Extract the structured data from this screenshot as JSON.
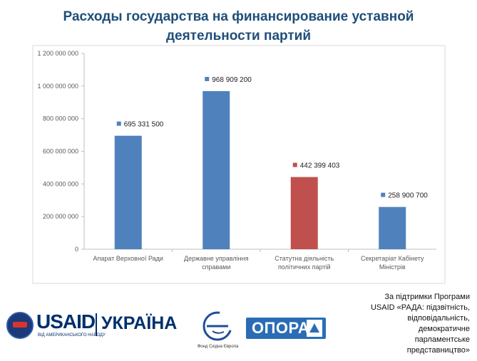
{
  "header": {
    "title_line1": "Расходы государства на финансирование уставной",
    "title_line2": "деятельности партий"
  },
  "chart_data": {
    "type": "bar",
    "title": "Расходы государства на финансирование уставной деятельности партий",
    "categories": [
      [
        "Апарат Верховної Ради"
      ],
      [
        "Державне управління",
        "справами"
      ],
      [
        "Статутна діяльність",
        "політичних партій"
      ],
      [
        "Секретаріат Кабінету",
        "Міністрів"
      ]
    ],
    "values": [
      695331500,
      968909200,
      442399403,
      258900700
    ],
    "data_labels": [
      "695 331 500",
      "968 909 200",
      "442 399 403",
      "258 900 700"
    ],
    "bar_colors": [
      "#4f81bd",
      "#4f81bd",
      "#c0504d",
      "#4f81bd"
    ],
    "ylim": [
      0,
      1200000000
    ],
    "ytick_values": [
      0,
      200000000,
      400000000,
      600000000,
      800000000,
      1000000000,
      1200000000
    ],
    "ytick_labels": [
      "0",
      "200 000 000",
      "400 000 000",
      "600 000 000",
      "800 000 000",
      "1 000 000 000",
      "1 200 000 000"
    ],
    "xlabel": "",
    "ylabel": "",
    "grid": false,
    "legend": "none"
  },
  "footer": {
    "usaid_word": "USAID",
    "usaid_country": "УКРАЇНА",
    "usaid_sub": "ВІД АМЕРИКАНСЬКОГО НАРОДУ",
    "esf_caption": "Фонд Східна Європа",
    "opora_word": "ОПОРА",
    "support_lines": [
      "За підтримки Програми",
      "USAID «РАДА:  підзвітність,",
      "відповідальність,",
      "демократичне",
      "парламентське",
      "представництво»"
    ]
  },
  "colors": {
    "title": "#1f4e79",
    "bar_default": "#4f81bd",
    "bar_highlight": "#c0504d",
    "usaid_navy": "#002f6c",
    "opora_blue": "#2a6db5"
  }
}
